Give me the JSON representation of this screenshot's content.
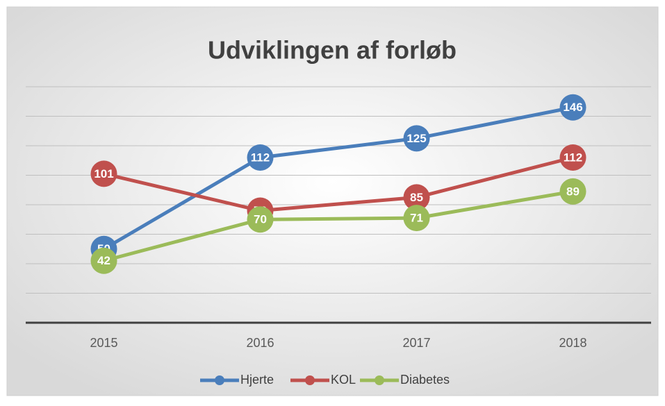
{
  "chart_data": {
    "type": "line",
    "title": "Udviklingen af forløb",
    "categories": [
      "2015",
      "2016",
      "2017",
      "2018"
    ],
    "series": [
      {
        "name": "Hjerte",
        "color": "#4a7ebb",
        "values": [
          50,
          112,
          125,
          146
        ]
      },
      {
        "name": "KOL",
        "color": "#c0504d",
        "values": [
          101,
          76,
          85,
          112
        ]
      },
      {
        "name": "Diabetes",
        "color": "#9bbb59",
        "values": [
          42,
          70,
          71,
          89
        ]
      }
    ],
    "ylim": [
      0,
      160
    ],
    "yticks": [
      0,
      20,
      40,
      60,
      80,
      100,
      120,
      140,
      160
    ],
    "grid": true,
    "legend": "bottom"
  }
}
